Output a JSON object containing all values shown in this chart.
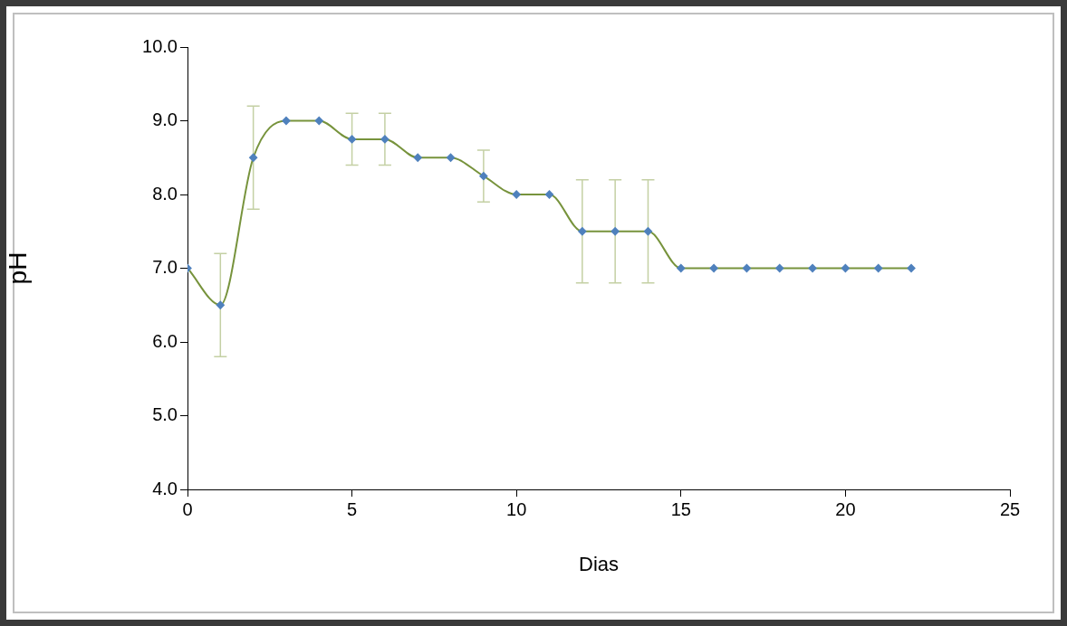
{
  "chart_data": {
    "type": "line",
    "xlabel": "Dias",
    "ylabel": "pH",
    "x": [
      0,
      1,
      2,
      3,
      4,
      5,
      6,
      7,
      8,
      9,
      10,
      11,
      12,
      13,
      14,
      15,
      16,
      17,
      18,
      19,
      20,
      21,
      22
    ],
    "series": [
      {
        "color": "#77933c",
        "values": [
          7,
          6.5,
          8.5,
          9,
          9,
          8.75,
          8.75,
          8.5,
          8.5,
          8.25,
          8,
          8,
          7.5,
          7.5,
          7.5,
          7,
          7,
          7,
          7,
          7,
          7,
          7,
          7
        ],
        "errors": [
          null,
          0.7,
          0.7,
          null,
          null,
          0.35,
          0.35,
          null,
          null,
          0.35,
          null,
          null,
          0.7,
          0.7,
          0.7,
          null,
          null,
          null,
          null,
          null,
          null,
          null,
          null
        ]
      }
    ],
    "xlim": [
      0,
      25
    ],
    "xticks": [
      0,
      5,
      10,
      15,
      20,
      25
    ],
    "ylim": [
      4,
      10
    ],
    "yticks": [
      {
        "value": 4,
        "label": "4.0"
      },
      {
        "value": 5,
        "label": "5.0"
      },
      {
        "value": 6,
        "label": "6.0"
      },
      {
        "value": 7,
        "label": "7.0"
      },
      {
        "value": 8,
        "label": "8.0"
      },
      {
        "value": 9,
        "label": "9.0"
      },
      {
        "value": 10,
        "label": "10.0"
      }
    ],
    "grid": false,
    "legend": false,
    "marker": "diamond",
    "line_style": "solid"
  }
}
